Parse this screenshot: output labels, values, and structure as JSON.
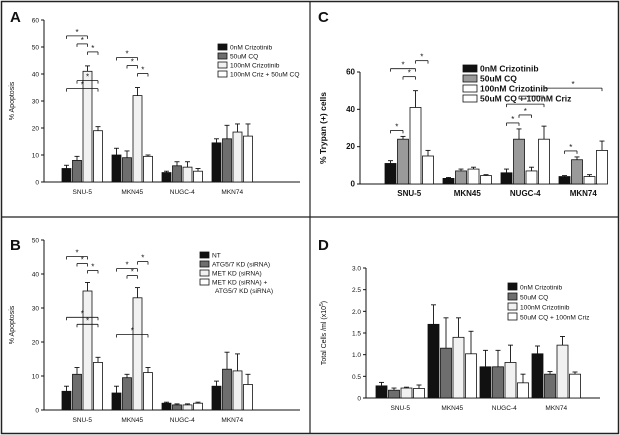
{
  "figure": {
    "colors": {
      "black": "#111111",
      "dark_gray": "#6e6e6e",
      "light_gray": "#f1f1f1",
      "white": "#ffffff",
      "mid_gray": "#9a9a9a",
      "border": "#222222"
    }
  },
  "chart_data": [
    {
      "id": "A",
      "panel_label": "A",
      "type": "bar",
      "ylabel": "% Apoptosis",
      "ylim": [
        0,
        60
      ],
      "yticks": [
        "0",
        "10",
        "20",
        "30",
        "40",
        "50",
        "60"
      ],
      "categories": [
        "SNU-5",
        "MKN45",
        "NUGC-4",
        "MKN74"
      ],
      "series": [
        {
          "name": "0nM Crizotinib",
          "fill": "black",
          "values": [
            5,
            10,
            3.5,
            14.5
          ],
          "errors": [
            1.2,
            2.5,
            0.5,
            1.5
          ]
        },
        {
          "name": "50uM CQ",
          "fill": "dark_gray",
          "values": [
            8,
            9,
            6,
            16
          ],
          "errors": [
            1.5,
            2.5,
            1.5,
            5
          ]
        },
        {
          "name": "100nM Crizotinib",
          "fill": "light_gray",
          "values": [
            41,
            32,
            5.5,
            18.5
          ],
          "errors": [
            2,
            3,
            2,
            3
          ]
        },
        {
          "name": "100nM Criz + 50uM CQ",
          "fill": "white",
          "values": [
            19,
            9.5,
            4,
            17
          ],
          "errors": [
            1.5,
            0.5,
            1,
            4.5
          ]
        }
      ],
      "significance": [
        {
          "group": 0,
          "from": 2,
          "to": 3,
          "label": "*"
        },
        {
          "group": 0,
          "from": 1,
          "to": 2,
          "label": "*"
        },
        {
          "group": 0,
          "from": 0,
          "to": 2,
          "label": "*"
        },
        {
          "group": 0,
          "from": 0,
          "to": 3,
          "label": "*"
        },
        {
          "group": 0,
          "from": 1,
          "to": 3,
          "label": "*"
        },
        {
          "group": 1,
          "from": 2,
          "to": 3,
          "label": "*"
        },
        {
          "group": 1,
          "from": 1,
          "to": 2,
          "label": "*"
        },
        {
          "group": 1,
          "from": 0,
          "to": 2,
          "label": "*"
        }
      ]
    },
    {
      "id": "B",
      "panel_label": "B",
      "type": "bar",
      "ylabel": "% Apoptosis",
      "ylim": [
        0,
        50
      ],
      "yticks": [
        "0",
        "10",
        "20",
        "30",
        "40",
        "50"
      ],
      "categories": [
        "SNU-5",
        "MKN45",
        "NUGC-4",
        "MKN74"
      ],
      "series": [
        {
          "name": "NT",
          "fill": "black",
          "values": [
            5.5,
            5,
            2,
            7
          ],
          "errors": [
            1.5,
            2,
            0.3,
            1.5
          ]
        },
        {
          "name": "ATG5/7 KD (siRNA)",
          "fill": "dark_gray",
          "values": [
            10.5,
            9.5,
            1.5,
            12
          ],
          "errors": [
            2,
            1,
            0.3,
            5
          ]
        },
        {
          "name": "MET KD (siRNA)",
          "fill": "light_gray",
          "values": [
            35,
            33,
            1.5,
            11.5
          ],
          "errors": [
            2.5,
            3,
            0.3,
            5
          ]
        },
        {
          "name": "MET KD (siRNA) + ATG5/7 KD (siRNA)",
          "fill": "white",
          "values": [
            14,
            11,
            2,
            7.5
          ],
          "errors": [
            1.5,
            1.5,
            0.3,
            3
          ]
        }
      ],
      "significance": [
        {
          "group": 0,
          "from": 2,
          "to": 3,
          "label": "*"
        },
        {
          "group": 0,
          "from": 1,
          "to": 2,
          "label": "*"
        },
        {
          "group": 0,
          "from": 0,
          "to": 2,
          "label": "*"
        },
        {
          "group": 0,
          "from": 1,
          "to": 3,
          "label": "*"
        },
        {
          "group": 0,
          "from": 0,
          "to": 3,
          "label": "*"
        },
        {
          "group": 1,
          "from": 1,
          "to": 2,
          "label": "*"
        },
        {
          "group": 1,
          "from": 0,
          "to": 2,
          "label": "*"
        },
        {
          "group": 1,
          "from": 2,
          "to": 3,
          "label": "*"
        },
        {
          "group": 1,
          "from": 0,
          "to": 3,
          "label": "*"
        }
      ]
    },
    {
      "id": "C",
      "panel_label": "C",
      "type": "bar",
      "ylabel": "% Trypan (+) cells",
      "ylim": [
        0,
        60
      ],
      "yticks": [
        "0",
        "20",
        "40",
        "60"
      ],
      "categories": [
        "SNU-5",
        "MKN45",
        "NUGC-4",
        "MKN74"
      ],
      "series": [
        {
          "name": "0nM Crizotinib",
          "fill": "black",
          "values": [
            11,
            3,
            6,
            4
          ],
          "errors": [
            1.5,
            0.5,
            2,
            0.5
          ]
        },
        {
          "name": "50uM CQ",
          "fill": "mid_gray",
          "values": [
            24,
            7,
            24,
            13
          ],
          "errors": [
            1.5,
            1,
            5.5,
            1.5
          ]
        },
        {
          "name": "100nM Crizotinib",
          "fill": "white",
          "values": [
            41,
            8,
            7,
            4
          ],
          "errors": [
            9,
            1,
            2,
            1
          ]
        },
        {
          "name": "50uM CQ + 100nM Criz",
          "fill": "white",
          "values": [
            15,
            4.5,
            24,
            18
          ],
          "errors": [
            3,
            0.5,
            7,
            5
          ]
        }
      ],
      "significance": [
        {
          "group": 0,
          "from": 0,
          "to": 1,
          "label": "*"
        },
        {
          "group": 0,
          "from": 1,
          "to": 2,
          "label": "*"
        },
        {
          "group": 0,
          "from": 0,
          "to": 2,
          "label": "*"
        },
        {
          "group": 0,
          "from": 2,
          "to": 3,
          "label": "*"
        },
        {
          "group": 2,
          "from": 0,
          "to": 1,
          "label": "*"
        },
        {
          "group": 2,
          "from": 1,
          "to": 2,
          "label": "*"
        },
        {
          "group": 2,
          "from": 0,
          "to": 3,
          "label": "*"
        },
        {
          "group": 2,
          "from": 1,
          "to": 3,
          "label": "*"
        },
        {
          "group": 3,
          "from": 0,
          "to": 1,
          "label": "*"
        },
        {
          "group": 2,
          "from": 3,
          "to": 15,
          "label": "*"
        }
      ]
    },
    {
      "id": "D",
      "panel_label": "D",
      "type": "bar",
      "ylabel": "Total Cells /ml (x10",
      "ylabel_sup": "5",
      "ylabel_end": ")",
      "ylim": [
        0,
        3
      ],
      "yticks": [
        "0",
        "0.5",
        "1.0",
        "1.5",
        "2.0",
        "2.5",
        "3.0"
      ],
      "categories": [
        "SNU-5",
        "MKN45",
        "NUGC-4",
        "MKN74"
      ],
      "series": [
        {
          "name": "0nM Crizotinib",
          "fill": "black",
          "values": [
            0.28,
            1.7,
            0.72,
            1.02
          ],
          "errors": [
            0.08,
            0.45,
            0.38,
            0.18
          ]
        },
        {
          "name": "50uM CQ",
          "fill": "dark_gray",
          "values": [
            0.18,
            1.15,
            0.72,
            0.55
          ],
          "errors": [
            0.05,
            0.7,
            0.38,
            0.06
          ]
        },
        {
          "name": "100nM Crizotinib",
          "fill": "light_gray",
          "values": [
            0.23,
            1.4,
            0.82,
            1.22
          ],
          "errors": [
            0.02,
            0.45,
            0.4,
            0.2
          ]
        },
        {
          "name": "50uM CQ + 100nM Criz",
          "fill": "white",
          "values": [
            0.22,
            1.02,
            0.35,
            0.55
          ],
          "errors": [
            0.08,
            0.52,
            0.2,
            0.05
          ]
        }
      ],
      "significance": []
    }
  ]
}
